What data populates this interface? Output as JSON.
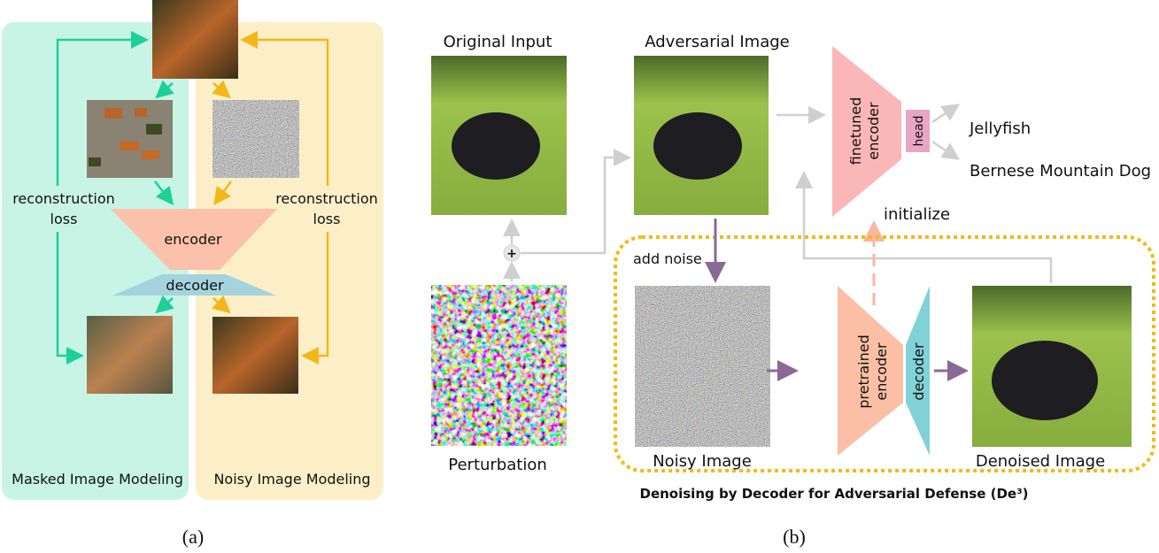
{
  "panel_a": {
    "caption": "(a)",
    "left_title": "Masked Image Modeling",
    "right_title": "Noisy Image Modeling",
    "loss_label_line1": "reconstruction",
    "loss_label_line2": "loss",
    "encoder": "encoder",
    "decoder": "decoder",
    "colors": {
      "mim_bg": "#c8f4e6",
      "nim_bg": "#fcefc8",
      "mim_arrow": "#1ecf98",
      "nim_arrow": "#f2b81a",
      "encoder": "#fbc1aa",
      "decoder": "#a4d3de"
    }
  },
  "panel_b": {
    "caption": "(b)",
    "original_input": "Original Input",
    "perturbation": "Perturbation",
    "adversarial_image": "Adversarial Image",
    "finetuned_encoder_line1": "finetuned",
    "finetuned_encoder_line2": "encoder",
    "head": "head",
    "output_1": "Jellyfish",
    "output_2": "Bernese Mountain Dog",
    "initialize": "initialize",
    "add_noise": "add noise",
    "noisy_image": "Noisy Image",
    "pretrained_encoder_line1": "pretrained",
    "pretrained_encoder_line2": "encoder",
    "decoder": "decoder",
    "denoised_image": "Denoised Image",
    "defense_title": "Denoising by Decoder for Adversarial Defense (De³)",
    "colors": {
      "gray_arrow": "#cfcfcf",
      "purple_arrow": "#8a6a95",
      "dotted_border": "#f5b90f",
      "finetuned": "#fbb7b7",
      "head": "#e8a6c4",
      "pretrained": "#fbbfa5",
      "decoder": "#80d2d6"
    }
  }
}
